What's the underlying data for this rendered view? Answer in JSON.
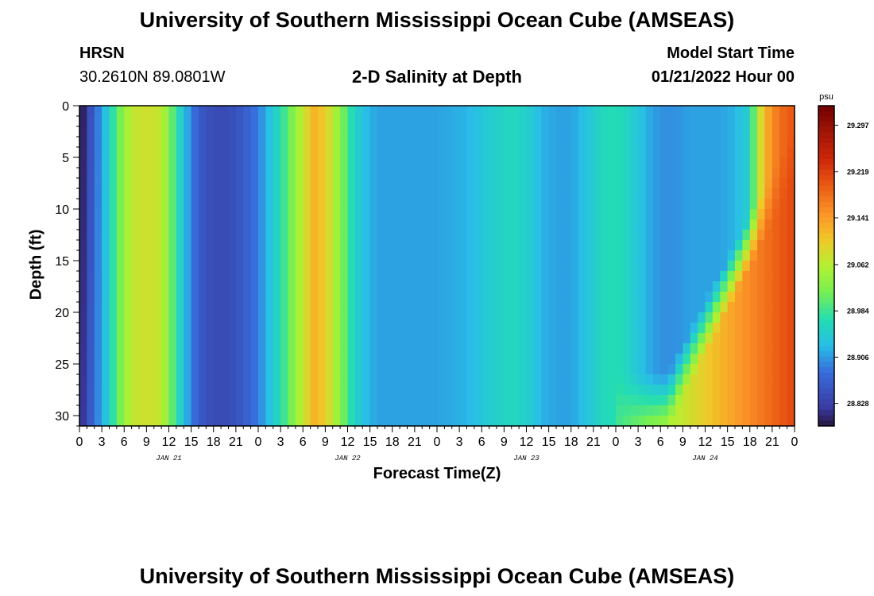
{
  "page": {
    "title_top": "University of Southern Mississippi Ocean Cube (AMSEAS)",
    "title_bottom": "University of Southern Mississippi Ocean Cube (AMSEAS)",
    "station": "HRSN",
    "coords": "30.2610N  89.0801W",
    "subtitle": "2-D Salinity at Depth",
    "model_label": "Model Start Time",
    "model_time": "01/21/2022 Hour 00"
  },
  "chart_data": {
    "type": "heatmap",
    "title": "2-D Salinity at Depth",
    "xlabel": "Forecast Time(Z)",
    "ylabel": "Depth (ft)",
    "colorbar_unit": "psu",
    "colorbar_ticks": [
      "29.297",
      "29.219",
      "29.141",
      "29.062",
      "28.984",
      "28.906",
      "28.828"
    ],
    "colorbar_range": [
      28.79,
      29.33
    ],
    "x_hours_range": [
      0,
      96
    ],
    "x_tick_labels": [
      "0",
      "3",
      "6",
      "9",
      "12",
      "15",
      "18",
      "21",
      "0",
      "3",
      "6",
      "9",
      "12",
      "15",
      "18",
      "21",
      "0",
      "3",
      "6",
      "9",
      "12",
      "15",
      "18",
      "21",
      "0",
      "3",
      "6",
      "9",
      "12",
      "15",
      "18",
      "21",
      "0"
    ],
    "day_labels": [
      "JAN 21",
      "JAN 22",
      "JAN 23",
      "JAN 24"
    ],
    "y_ticks": [
      "0",
      "5",
      "10",
      "15",
      "20",
      "25",
      "30"
    ],
    "ylim": [
      0,
      31
    ],
    "surface_salinity_by_hour": {
      "x": [
        0,
        2,
        4,
        5,
        7,
        9,
        11,
        12.5,
        14,
        16,
        18,
        20,
        22,
        24,
        26,
        28,
        30,
        31.5,
        33,
        35,
        36.5,
        38,
        40,
        44,
        48,
        52,
        56,
        58,
        60,
        62,
        64,
        66,
        68,
        70,
        72,
        74,
        76,
        78,
        80,
        82,
        84,
        86,
        88,
        90,
        91,
        92,
        94,
        96
      ],
      "y": [
        28.8,
        28.88,
        28.95,
        29.0,
        29.07,
        29.08,
        29.07,
        29.0,
        28.93,
        28.86,
        28.84,
        28.84,
        28.86,
        28.89,
        28.94,
        29.0,
        29.07,
        29.12,
        29.1,
        29.03,
        28.97,
        28.93,
        28.91,
        28.91,
        28.91,
        28.92,
        28.95,
        28.96,
        28.95,
        28.92,
        28.91,
        28.91,
        28.93,
        28.96,
        28.97,
        28.95,
        28.92,
        28.9,
        28.9,
        28.91,
        28.91,
        28.91,
        28.92,
        28.95,
        29.05,
        29.12,
        29.18,
        29.2
      ]
    }
  }
}
